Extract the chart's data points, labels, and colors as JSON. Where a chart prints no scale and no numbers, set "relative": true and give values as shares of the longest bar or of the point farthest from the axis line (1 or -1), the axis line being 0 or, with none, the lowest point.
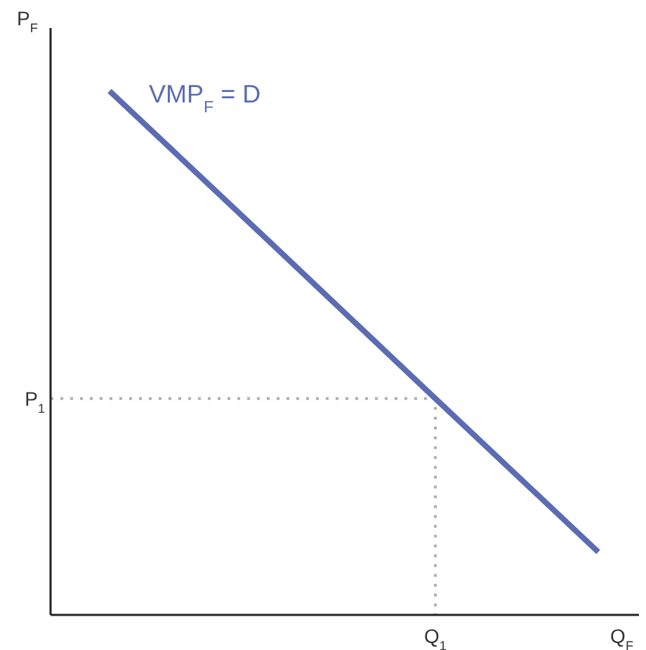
{
  "chart_data": {
    "type": "line",
    "relative": true,
    "xlabel": "Q$_{F}$",
    "ylabel": "P$_{F}$",
    "categories": [
      null,
      null,
      null,
      null
    ],
    "series": [
      {
        "color": "#5b6cb3",
        "values": [
          1,
          0.707,
          0.413,
          0.12
        ]
      }
    ],
    "ref_lines": [
      {
        "axis": "y",
        "value": 0.413,
        "label": "P$_{1}$",
        "color": "#b0b0b0",
        "line_style": "dotted"
      }
    ],
    "annotations": [
      "VMP$_{F}$ = D",
      "Q$_{1}$"
    ],
    "line_style": "solid"
  }
}
